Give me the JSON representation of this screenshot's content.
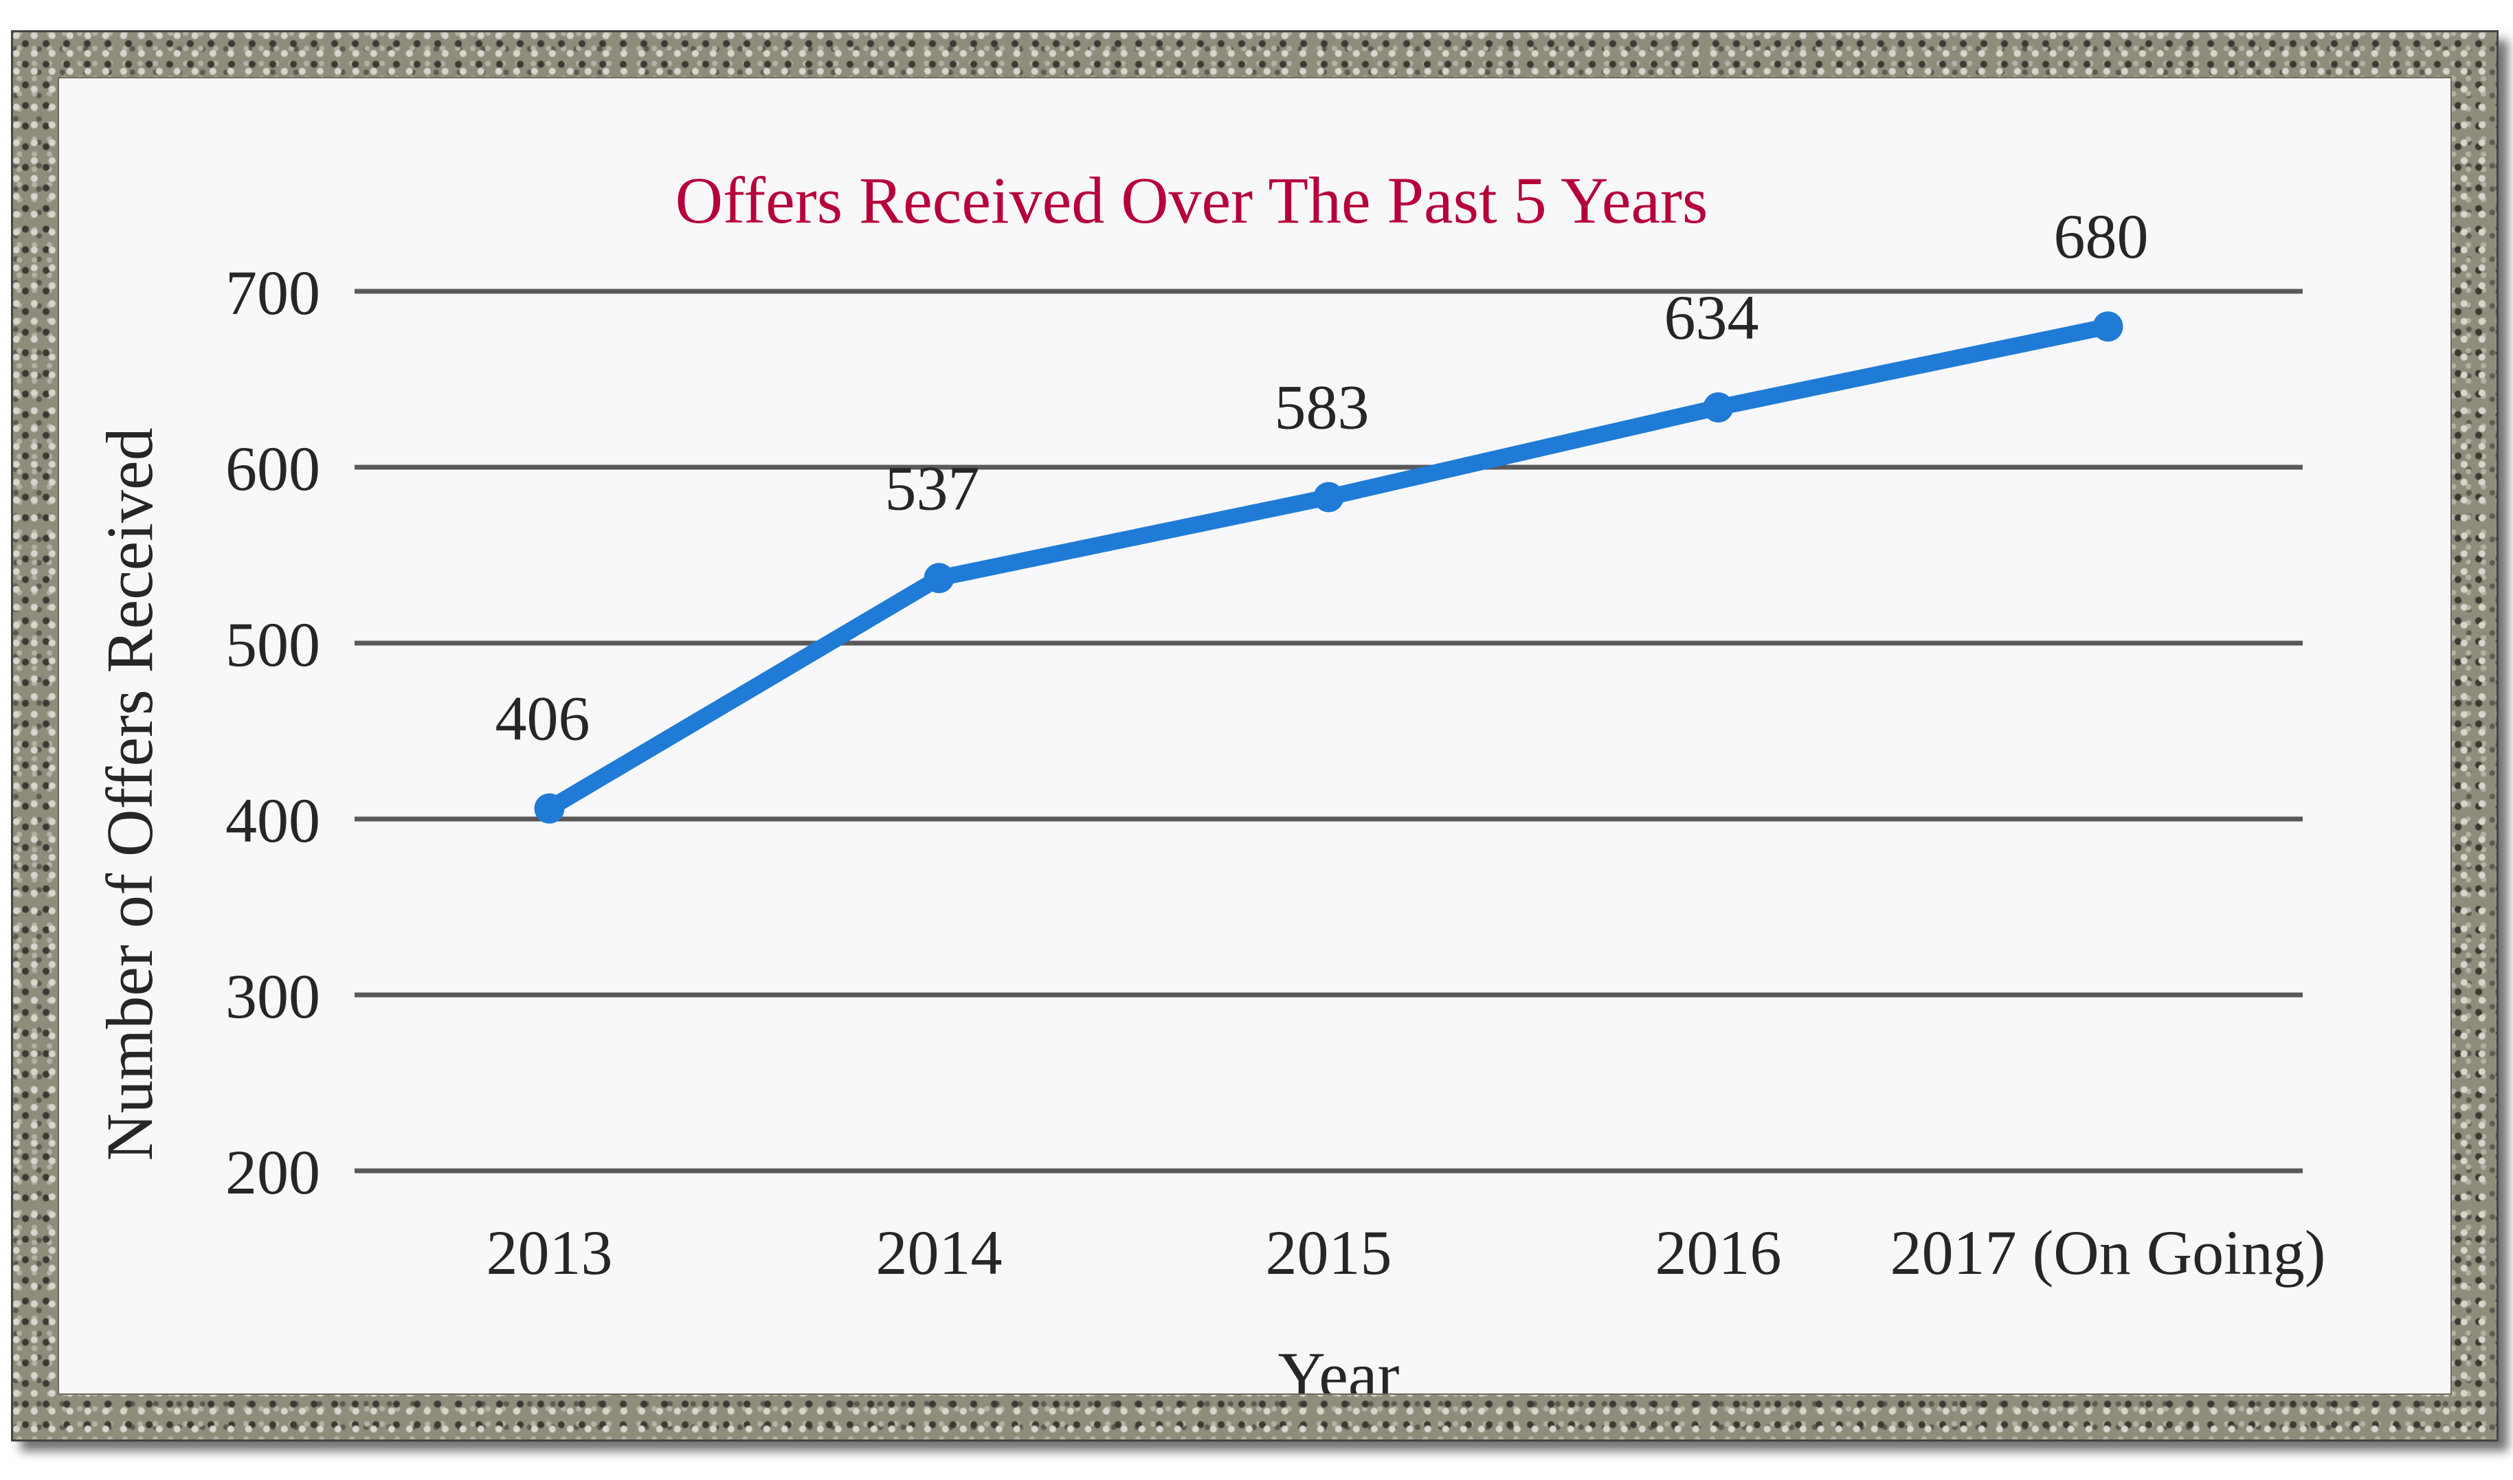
{
  "colors": {
    "title": "#b5003a",
    "series": "#1f7bd6",
    "grid": "#595959",
    "text": "#262626",
    "panel": "#f8f7f9"
  },
  "chart_data": {
    "type": "line",
    "title": "Offers Received Over The Past 5 Years",
    "xlabel": "Year",
    "ylabel": "Number of Offers Received",
    "categories": [
      "2013",
      "2014",
      "2015",
      "2016",
      "2017 (On Going)"
    ],
    "series": [
      {
        "values": [
          406,
          537,
          583,
          634,
          680
        ]
      }
    ],
    "data_labels": [
      "406",
      "537",
      "583",
      "634",
      "680"
    ],
    "ylim": [
      200,
      700
    ],
    "yticks": [
      {
        "value": 700,
        "label": "700"
      },
      {
        "value": 600,
        "label": "600"
      },
      {
        "value": 500,
        "label": "500"
      },
      {
        "value": 400,
        "label": "400"
      },
      {
        "value": 300,
        "label": "300"
      },
      {
        "value": 200,
        "label": "200"
      }
    ],
    "grid": true,
    "legend": "none"
  }
}
